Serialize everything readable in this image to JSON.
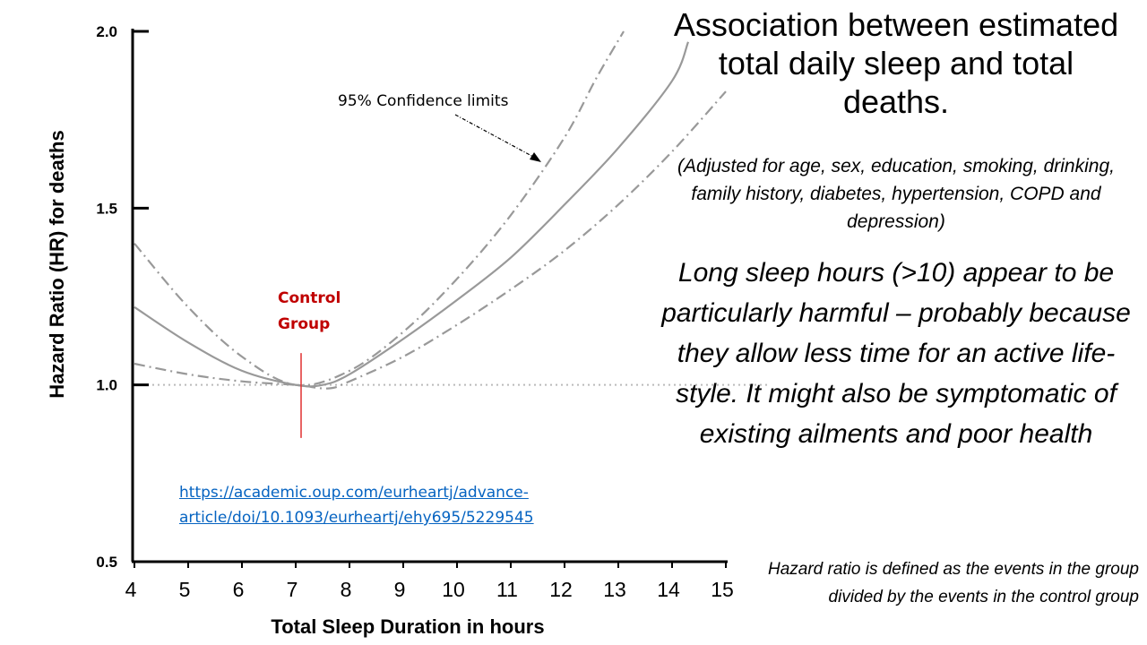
{
  "title": "Association between estimated total daily sleep and total deaths.",
  "adjusted_note": "(Adjusted for age, sex, education, smoking, drinking, family history, diabetes, hypertension, COPD and depression)",
  "statement": "Long sleep hours (>10) appear to be particularly harmful – probably because  they allow less time for an active life-style. It might also be symptomatic of existing ailments and poor health",
  "source_link": "https://academic.oup.com/eurheartj/advance-article/doi/10.1093/eurheartj/ehy695/5229545",
  "hazard_ratio_definition": "Hazard ratio is defined as the events in the group divided by the events in the control group",
  "colors": {
    "curve": "#999999",
    "reference_line": "#bbbbbb",
    "control_marker": "#e03030",
    "control_label": "#c00000",
    "link": "#0563c1"
  },
  "chart_data": {
    "type": "line",
    "xlabel": "Total Sleep Duration in hours",
    "ylabel": "Hazard Ratio (HR) for deaths",
    "xlim": [
      4,
      15
    ],
    "ylim": [
      0.5,
      2.0
    ],
    "xticks": [
      "4",
      "5",
      "6",
      "7",
      "8",
      "9",
      "10",
      "11",
      "12",
      "13",
      "14",
      "15"
    ],
    "yticks": [
      "0.5",
      "1.0",
      "1.5",
      "2.0"
    ],
    "reference_line": {
      "y": 1.0,
      "style": "dotted"
    },
    "series": [
      {
        "name": "Hazard ratio",
        "style": "solid",
        "x": [
          4,
          5,
          6,
          7,
          7.5,
          8,
          9,
          10,
          11,
          12,
          13,
          14,
          14.3
        ],
        "y": [
          1.22,
          1.12,
          1.04,
          1.0,
          1.0,
          1.03,
          1.13,
          1.24,
          1.36,
          1.51,
          1.67,
          1.86,
          1.97
        ]
      },
      {
        "name": "Upper 95% confidence limit",
        "style": "dash-dot",
        "x": [
          4,
          5,
          6,
          7,
          8,
          9,
          10,
          11,
          12,
          12.6,
          13.1
        ],
        "y": [
          1.4,
          1.22,
          1.08,
          1.0,
          1.04,
          1.15,
          1.3,
          1.48,
          1.7,
          1.87,
          2.0
        ]
      },
      {
        "name": "Lower 95% confidence limit",
        "style": "dash-dot",
        "x": [
          4,
          5,
          6,
          7,
          7.6,
          8,
          9,
          10,
          11,
          12,
          13,
          14,
          15
        ],
        "y": [
          1.06,
          1.03,
          1.01,
          1.0,
          0.99,
          1.01,
          1.08,
          1.17,
          1.27,
          1.38,
          1.51,
          1.66,
          1.83
        ]
      }
    ],
    "annotations": [
      {
        "text": "95% Confidence limits",
        "points_to": {
          "x": 11.5,
          "y": 1.62
        }
      },
      {
        "text": "Control Group",
        "marker_x": 7.1,
        "marker_y_range": [
          0.85,
          1.09
        ]
      }
    ]
  }
}
